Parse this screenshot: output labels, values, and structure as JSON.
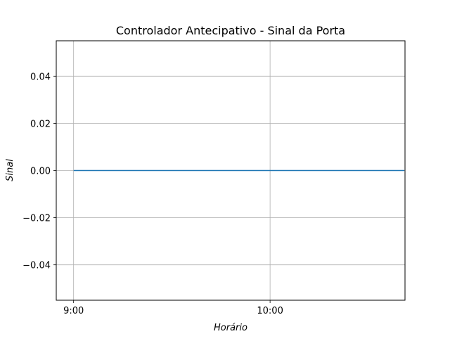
{
  "chart_data": {
    "type": "line",
    "title": "Controlador Antecipativo - Sinal da Porta",
    "xlabel": "Horário",
    "ylabel": "Sinal",
    "x_ticks": [
      "9:00",
      "10:00"
    ],
    "x_tick_values": [
      540,
      600
    ],
    "y_ticks": [
      "0.04",
      "0.02",
      "0.00",
      "−0.02",
      "−0.04"
    ],
    "y_tick_values": [
      0.04,
      0.02,
      0.0,
      -0.02,
      -0.04
    ],
    "xlim": [
      534.7,
      641.2
    ],
    "ylim": [
      -0.055,
      0.055
    ],
    "grid": true,
    "series": [
      {
        "color": "#1f77b4",
        "x": [
          540,
          641
        ],
        "y": [
          0.0,
          0.0
        ]
      }
    ]
  },
  "colors": {
    "line": "#1f77b4",
    "grid": "#b0b0b0",
    "axes": "#000000",
    "background": "#ffffff"
  }
}
